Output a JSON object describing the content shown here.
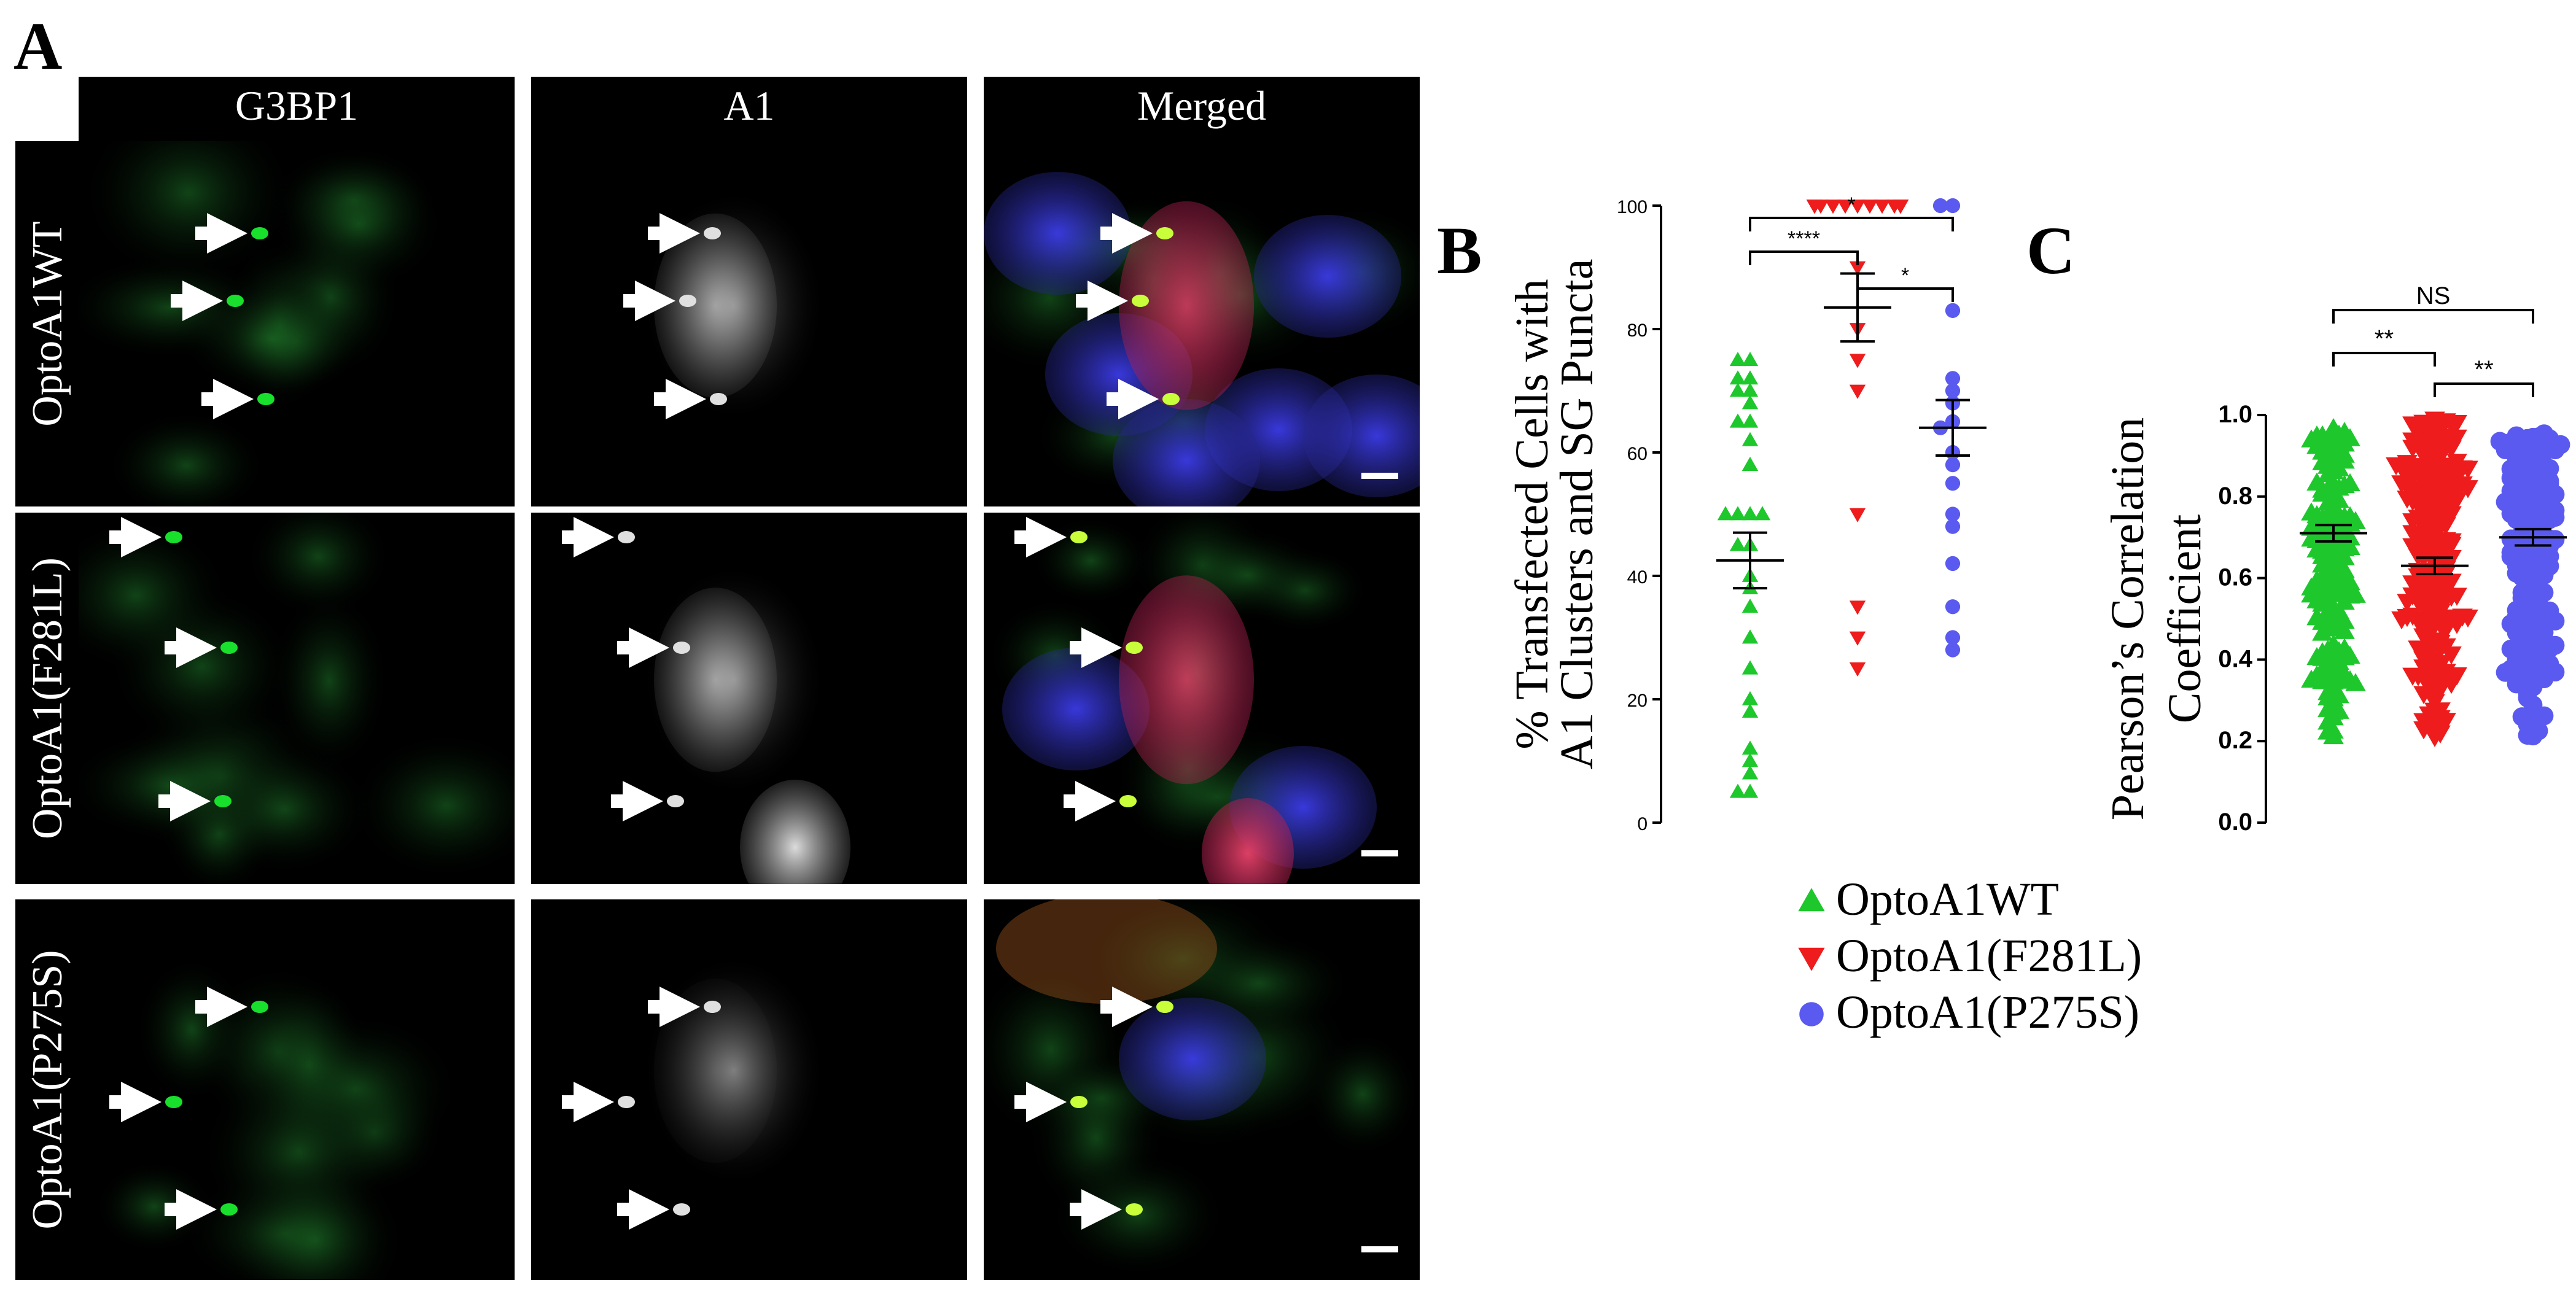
{
  "panels": {
    "a": {
      "letter": "A"
    },
    "b": {
      "letter": "B"
    },
    "c": {
      "letter": "C"
    }
  },
  "micrographs": {
    "columns": [
      "G3BP1",
      "A1",
      "Merged"
    ],
    "rows": [
      "OptoA1WT",
      "OptoA1(F281L)",
      "OptoA1(P275S)"
    ],
    "channel_colors": {
      "G3BP1": "#17d02a",
      "A1": "#e6e6e6",
      "nucleus": "#3a3adf",
      "A1_merged": "#e03a5a"
    }
  },
  "legend": {
    "items": [
      {
        "label": "OptoA1WT",
        "color": "#1ec82c",
        "marker": "triangle-up"
      },
      {
        "label": "OptoA1(F281L)",
        "color": "#ee1c1c",
        "marker": "triangle-down"
      },
      {
        "label": "OptoA1(P275S)",
        "color": "#5a5af0",
        "marker": "circle"
      }
    ]
  },
  "chart_data": [
    {
      "type": "scatter",
      "ylabel_line1": "% Transfected Cells with",
      "ylabel_line2": "A1 Clusters and SG Puncta",
      "ylim": [
        0,
        100
      ],
      "yticks": [
        "0",
        "20",
        "40",
        "60",
        "80",
        "100"
      ],
      "series": [
        {
          "marker": "triangle-up",
          "color": "#1ec82c",
          "mean": 42.5,
          "sem": 4.5,
          "values": [
            75,
            75,
            72,
            72,
            70,
            70,
            68,
            65,
            65,
            62,
            58,
            50,
            50,
            50,
            50,
            45,
            45,
            40,
            38,
            35,
            30,
            25,
            20,
            18,
            12,
            10,
            8,
            5,
            5
          ]
        },
        {
          "marker": "triangle-down",
          "color": "#ee1c1c",
          "mean": 83.5,
          "sem": 5.5,
          "values": [
            100,
            100,
            100,
            100,
            100,
            100,
            100,
            100,
            100,
            100,
            100,
            100,
            100,
            100,
            100,
            100,
            90,
            80,
            75,
            70,
            50,
            35,
            30,
            25
          ]
        },
        {
          "marker": "circle",
          "color": "#5a5af0",
          "mean": 64,
          "sem": 4.5,
          "values": [
            100,
            100,
            83,
            72,
            70,
            68,
            65,
            64,
            60,
            58,
            55,
            50,
            48,
            42,
            35,
            30,
            28
          ]
        }
      ],
      "significance": [
        {
          "from": 0,
          "to": 1,
          "label": "****"
        },
        {
          "from": 1,
          "to": 2,
          "label": "*"
        },
        {
          "from": 0,
          "to": 2,
          "label": "*"
        }
      ]
    },
    {
      "type": "scatter",
      "ylabel_line1": "Pearson’s Correlation",
      "ylabel_line2": "Coefficient",
      "ylim": [
        0,
        1
      ],
      "yticks": [
        "0.0",
        "0.2",
        "0.4",
        "0.6",
        "0.8",
        "1.0"
      ],
      "series": [
        {
          "marker": "triangle-up",
          "color": "#1ec82c",
          "mean": 0.71,
          "sem": 0.02,
          "n": 160,
          "range": [
            0.21,
            0.97
          ]
        },
        {
          "marker": "triangle-down",
          "color": "#ee1c1c",
          "mean": 0.63,
          "sem": 0.02,
          "n": 220,
          "range": [
            0.21,
            0.99
          ]
        },
        {
          "marker": "circle",
          "color": "#5a5af0",
          "mean": 0.7,
          "sem": 0.02,
          "n": 200,
          "range": [
            0.2,
            0.96
          ]
        }
      ],
      "significance": [
        {
          "from": 0,
          "to": 1,
          "label": "**"
        },
        {
          "from": 1,
          "to": 2,
          "label": "**"
        },
        {
          "from": 0,
          "to": 2,
          "label": "NS"
        }
      ]
    }
  ]
}
